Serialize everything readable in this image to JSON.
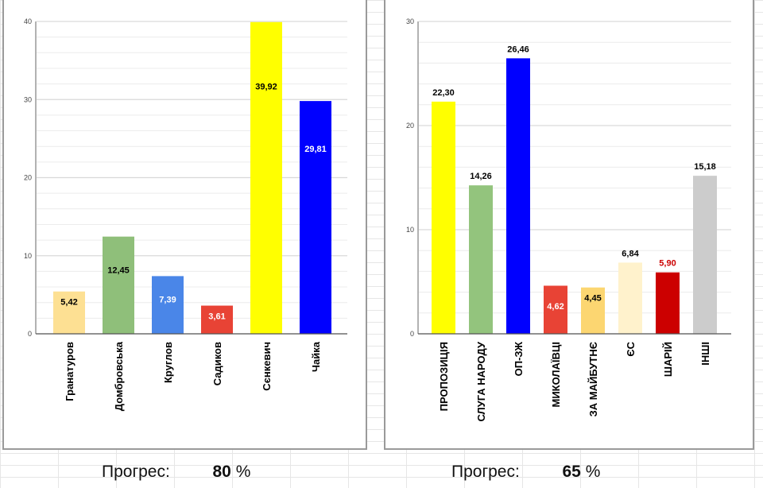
{
  "progress": [
    {
      "label": "Прогрес:",
      "value": "80",
      "unit": "%"
    },
    {
      "label": "Прогрес:",
      "value": "65",
      "unit": "%"
    }
  ],
  "chart_data": [
    {
      "type": "bar",
      "title": "",
      "xlabel": "",
      "ylabel": "",
      "ylim": [
        0,
        40
      ],
      "yticks": [
        "0",
        "10",
        "20",
        "30",
        "40"
      ],
      "grid": true,
      "categories": [
        "Гранатуров",
        "Домбровська",
        "Круглов",
        "Садиков",
        "Сєнкевич",
        "Чайка"
      ],
      "values": [
        5.42,
        12.45,
        7.39,
        3.61,
        39.92,
        29.81
      ],
      "labels": [
        "5,42",
        "12,45",
        "7,39",
        "3,61",
        "39,92",
        "29,81"
      ],
      "colors": [
        "#fde093",
        "#8fbf7a",
        "#4a86e8",
        "#e84335",
        "#ffff00",
        "#0000ff"
      ],
      "label_colors": [
        "#000000",
        "#000000",
        "#ffffff",
        "#ffffff",
        "#000000",
        "#ffffff"
      ],
      "label_position": "inside"
    },
    {
      "type": "bar",
      "title": "",
      "xlabel": "",
      "ylabel": "",
      "ylim": [
        0,
        30
      ],
      "yticks": [
        "0",
        "10",
        "20",
        "30"
      ],
      "grid": true,
      "categories": [
        "ПРОПОЗИЦІЯ",
        "СЛУГА НАРОДУ",
        "ОП-ЗЖ",
        "МИКОЛАЇВЦІ",
        "ЗА МАЙБУТНЄ",
        "ЄС",
        "ШАРІЙ",
        "ІНШІ"
      ],
      "values": [
        22.3,
        14.26,
        26.46,
        4.62,
        4.45,
        6.84,
        5.9,
        15.18
      ],
      "labels": [
        "22,30",
        "14,26",
        "26,46",
        "4,62",
        "4,45",
        "6,84",
        "5,90",
        "15,18"
      ],
      "colors": [
        "#ffff00",
        "#93c47d",
        "#0000ff",
        "#e84335",
        "#fcd671",
        "#fff2cc",
        "#cc0000",
        "#cccccc"
      ],
      "label_colors": [
        "#000000",
        "#000000",
        "#000000",
        "#ffffff",
        "#000000",
        "#000000",
        "#cc0000",
        "#000000"
      ],
      "label_position": [
        "above",
        "above",
        "above",
        "inside",
        "inside",
        "above",
        "above",
        "above"
      ]
    }
  ]
}
